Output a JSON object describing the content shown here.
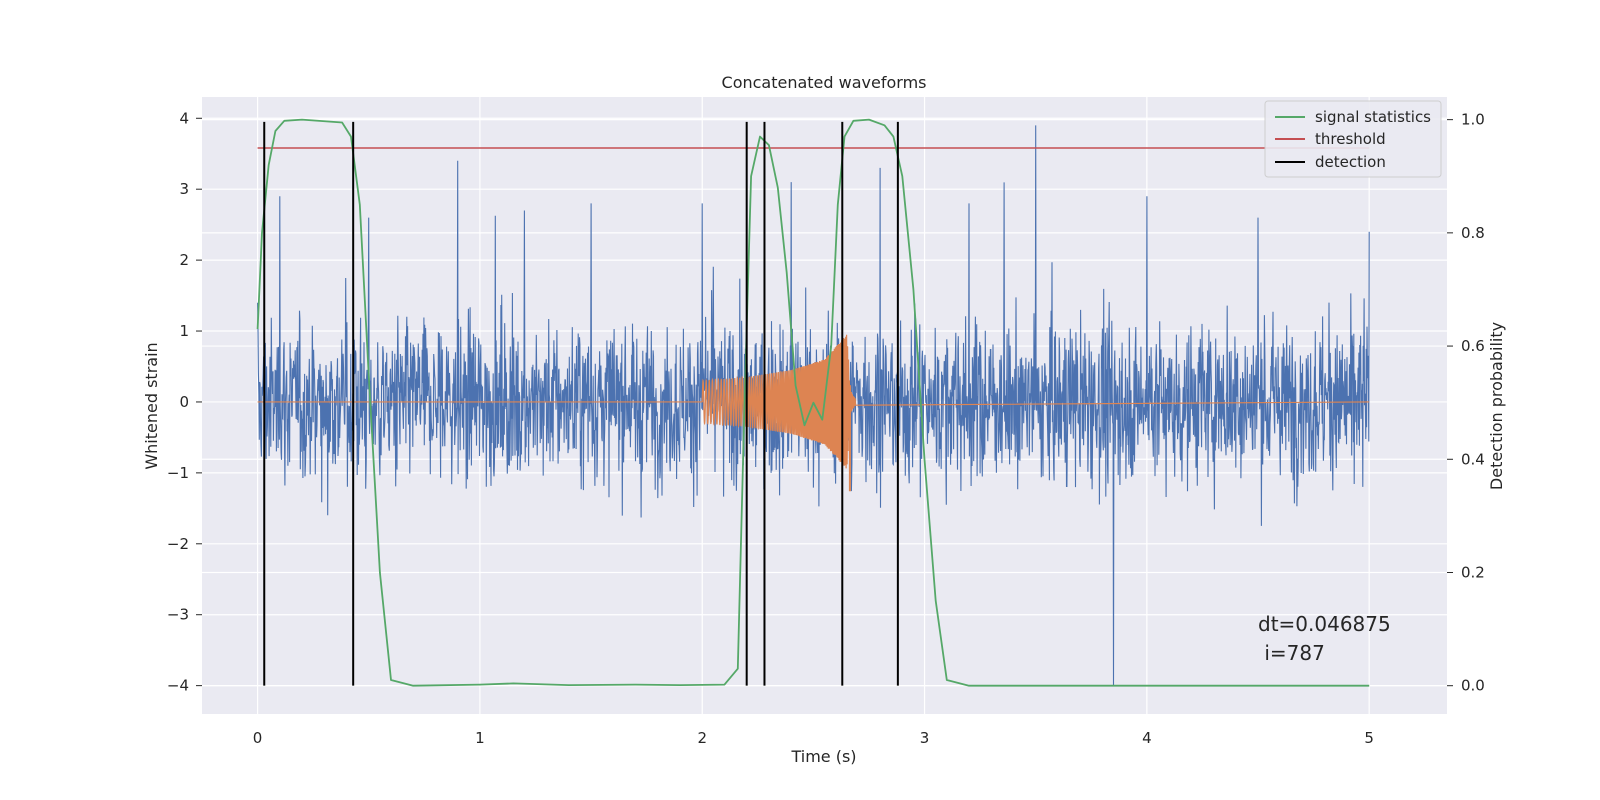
{
  "chart_data": {
    "type": "line",
    "title": "Concatenated waveforms",
    "xlabel": "Time (s)",
    "ylabel": "Whitened strain",
    "ylabel_right": "Detection probability",
    "xlim": [
      -0.25,
      5.35
    ],
    "ylim": [
      -4.4,
      4.3
    ],
    "ylim_right": [
      -0.05,
      1.04
    ],
    "x_ticks": [
      0,
      1,
      2,
      3,
      4,
      5
    ],
    "x_tick_labels": [
      "0",
      "1",
      "2",
      "3",
      "4",
      "5"
    ],
    "y_ticks": [
      -4,
      -3,
      -2,
      -1,
      0,
      1,
      2,
      3,
      4
    ],
    "y_tick_labels": [
      "−4",
      "−3",
      "−2",
      "−1",
      "0",
      "1",
      "2",
      "3",
      "4"
    ],
    "y2_ticks": [
      0.0,
      0.2,
      0.4,
      0.6,
      0.8,
      1.0
    ],
    "y2_tick_labels": [
      "0.0",
      "0.2",
      "0.4",
      "0.6",
      "0.8",
      "1.0"
    ],
    "grid": true,
    "legend_position": "top-right",
    "colors": {
      "plot_bg": "#eaeaf2",
      "grid": "#ffffff",
      "noise": "#4c72b0",
      "waveform": "#dd8452",
      "signal": "#55a868",
      "threshold": "#c44e52",
      "detection": "#000000"
    },
    "series": [
      {
        "name": "",
        "axis": "left",
        "description_type": "noise",
        "x_range": [
          0,
          5
        ],
        "envelope": [
          [
            0.0,
            1.4
          ],
          [
            0.1,
            2.9
          ],
          [
            0.5,
            2.6
          ],
          [
            0.9,
            3.4
          ],
          [
            1.2,
            2.7
          ],
          [
            1.5,
            2.8
          ],
          [
            2.0,
            2.8
          ],
          [
            2.4,
            3.1
          ],
          [
            2.8,
            3.3
          ],
          [
            3.2,
            2.8
          ],
          [
            3.5,
            3.9
          ],
          [
            3.85,
            -4.0
          ],
          [
            4.0,
            2.9
          ],
          [
            4.5,
            2.6
          ],
          [
            5.0,
            2.4
          ]
        ]
      },
      {
        "name": "",
        "axis": "left",
        "description_type": "chirp",
        "x": [
          2.0,
          2.2,
          2.4,
          2.55,
          2.65,
          2.67
        ],
        "amplitude": [
          0.3,
          0.35,
          0.45,
          0.6,
          0.95,
          0.1
        ]
      },
      {
        "name": "signal statistics",
        "axis": "right",
        "x": [
          0.0,
          0.02,
          0.05,
          0.08,
          0.12,
          0.2,
          0.38,
          0.42,
          0.46,
          0.5,
          0.55,
          0.6,
          0.7,
          1.0,
          1.15,
          1.4,
          1.7,
          1.9,
          2.1,
          2.16,
          2.19,
          2.22,
          2.26,
          2.3,
          2.34,
          2.38,
          2.42,
          2.46,
          2.5,
          2.54,
          2.58,
          2.61,
          2.64,
          2.68,
          2.75,
          2.82,
          2.86,
          2.9,
          2.95,
          3.0,
          3.05,
          3.1,
          3.2,
          5.0
        ],
        "y": [
          0.63,
          0.8,
          0.92,
          0.98,
          0.998,
          1.0,
          0.995,
          0.97,
          0.85,
          0.55,
          0.2,
          0.01,
          0.0,
          0.002,
          0.004,
          0.001,
          0.002,
          0.001,
          0.002,
          0.03,
          0.5,
          0.9,
          0.97,
          0.955,
          0.88,
          0.73,
          0.53,
          0.46,
          0.5,
          0.47,
          0.6,
          0.85,
          0.97,
          0.998,
          1.0,
          0.99,
          0.97,
          0.9,
          0.7,
          0.4,
          0.15,
          0.01,
          0.0,
          0.0
        ]
      },
      {
        "name": "threshold",
        "axis": "right",
        "x": [
          0.0,
          5.0
        ],
        "y": [
          0.95,
          0.95
        ]
      },
      {
        "name": "detection",
        "axis": "left",
        "x": [
          0.03,
          0.43,
          2.2,
          2.28,
          2.63,
          2.88
        ],
        "y_range": [
          -4.0,
          3.95
        ]
      }
    ],
    "legend": [
      "signal statistics",
      "threshold",
      "detection"
    ],
    "annotation": {
      "dt_text": "dt=0.046875",
      "i_text": " i=787"
    }
  }
}
